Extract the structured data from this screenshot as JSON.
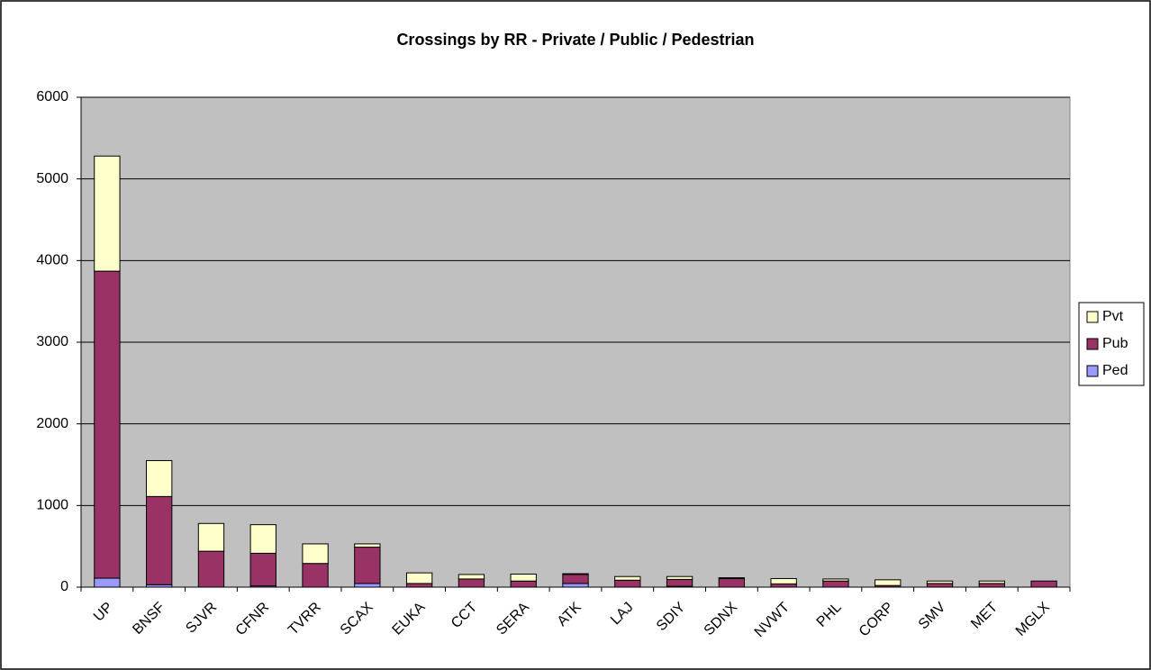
{
  "chart_data": {
    "type": "stacked-bar",
    "title": "Crossings by RR - Private / Public / Pedestrian",
    "categories": [
      "UP",
      "BNSF",
      "SJVR",
      "CFNR",
      "TVRR",
      "SCAX",
      "EUKA",
      "CCT",
      "SERA",
      "ATK",
      "LAJ",
      "SDIY",
      "SDNX",
      "NVWT",
      "PHL",
      "CORP",
      "SMV",
      "MET",
      "MGLX"
    ],
    "series": [
      {
        "name": "Ped",
        "color": "#9999ff",
        "values": [
          110,
          30,
          0,
          15,
          0,
          45,
          0,
          0,
          0,
          45,
          0,
          10,
          0,
          0,
          0,
          0,
          0,
          0,
          0
        ]
      },
      {
        "name": "Pub",
        "color": "#993366",
        "values": [
          3760,
          1080,
          440,
          400,
          290,
          445,
          45,
          100,
          75,
          110,
          85,
          85,
          105,
          40,
          75,
          20,
          45,
          45,
          75
        ]
      },
      {
        "name": "Pvt",
        "color": "#ffffcc",
        "values": [
          1410,
          440,
          340,
          350,
          240,
          40,
          130,
          55,
          85,
          10,
          45,
          35,
          10,
          65,
          25,
          70,
          30,
          30,
          0
        ]
      }
    ],
    "ylim": [
      0,
      6000
    ],
    "yticks": [
      0,
      1000,
      2000,
      3000,
      4000,
      5000,
      6000
    ],
    "grid": true,
    "legend": "right",
    "plot_background": "#c0c0c0"
  }
}
